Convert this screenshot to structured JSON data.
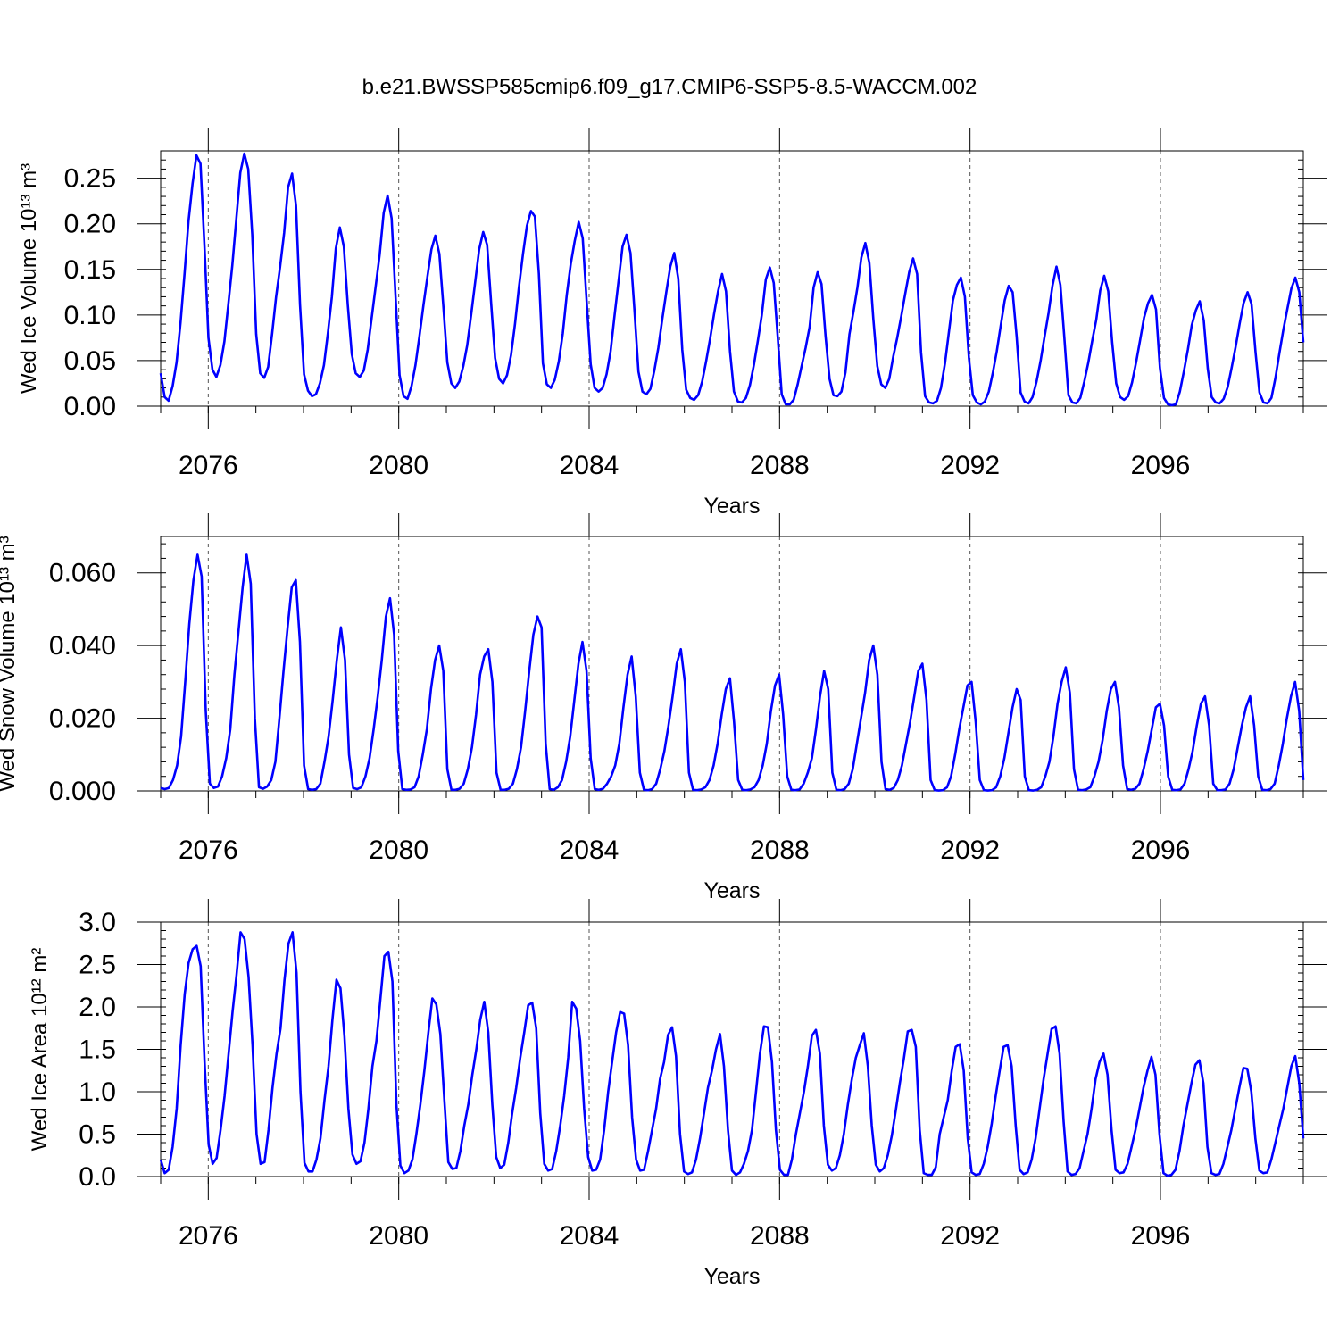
{
  "title": "b.e21.BWSSP585cmip6.f09_g17.CMIP6-SSP5-8.5-WACCM.002",
  "colors": {
    "series": "#0000ff",
    "axis": "#000000",
    "grid": "#555555"
  },
  "chart_data": [
    {
      "type": "line",
      "ylabel": "Wed Ice Volume 10¹³ m³",
      "xlabel": "Years",
      "xlim": [
        2075,
        2099
      ],
      "ylim": [
        0.0,
        0.28
      ],
      "yticks": [
        "0.00",
        "0.05",
        "0.10",
        "0.15",
        "0.20",
        "0.25"
      ],
      "xticks": [
        "2076",
        "2080",
        "2084",
        "2088",
        "2092",
        "2096"
      ],
      "grid": "vertical dashed at 2076, 2080, 2084, 2088, 2092, 2096",
      "series": [
        {
          "values": [
            0.036,
            0.01,
            0.006,
            0.022,
            0.048,
            0.092,
            0.146,
            0.203,
            0.244,
            0.275,
            0.266,
            0.175,
            0.075,
            0.04,
            0.032,
            0.045,
            0.071,
            0.112,
            0.155,
            0.205,
            0.256,
            0.277,
            0.26,
            0.188,
            0.079,
            0.036,
            0.031,
            0.043,
            0.08,
            0.12,
            0.153,
            0.19,
            0.24,
            0.255,
            0.22,
            0.111,
            0.035,
            0.017,
            0.011,
            0.013,
            0.025,
            0.045,
            0.08,
            0.12,
            0.173,
            0.196,
            0.175,
            0.111,
            0.057,
            0.036,
            0.032,
            0.039,
            0.062,
            0.097,
            0.131,
            0.166,
            0.212,
            0.231,
            0.206,
            0.121,
            0.034,
            0.011,
            0.008,
            0.022,
            0.045,
            0.077,
            0.111,
            0.142,
            0.172,
            0.187,
            0.167,
            0.109,
            0.048,
            0.025,
            0.02,
            0.027,
            0.044,
            0.067,
            0.101,
            0.136,
            0.172,
            0.191,
            0.177,
            0.113,
            0.053,
            0.03,
            0.025,
            0.034,
            0.056,
            0.09,
            0.131,
            0.167,
            0.198,
            0.214,
            0.208,
            0.145,
            0.047,
            0.024,
            0.02,
            0.029,
            0.049,
            0.08,
            0.122,
            0.156,
            0.181,
            0.202,
            0.184,
            0.115,
            0.046,
            0.02,
            0.016,
            0.02,
            0.035,
            0.06,
            0.099,
            0.137,
            0.175,
            0.188,
            0.168,
            0.106,
            0.038,
            0.016,
            0.013,
            0.019,
            0.039,
            0.064,
            0.096,
            0.125,
            0.153,
            0.168,
            0.14,
            0.062,
            0.018,
            0.009,
            0.007,
            0.012,
            0.027,
            0.049,
            0.074,
            0.101,
            0.126,
            0.145,
            0.126,
            0.06,
            0.016,
            0.005,
            0.004,
            0.009,
            0.023,
            0.045,
            0.072,
            0.1,
            0.139,
            0.152,
            0.135,
            0.075,
            0.013,
            0.002,
            0.002,
            0.007,
            0.024,
            0.044,
            0.064,
            0.087,
            0.13,
            0.147,
            0.134,
            0.077,
            0.03,
            0.012,
            0.011,
            0.016,
            0.037,
            0.079,
            0.103,
            0.13,
            0.163,
            0.179,
            0.157,
            0.096,
            0.044,
            0.024,
            0.02,
            0.03,
            0.054,
            0.075,
            0.098,
            0.123,
            0.147,
            0.162,
            0.145,
            0.059,
            0.011,
            0.004,
            0.003,
            0.006,
            0.02,
            0.047,
            0.082,
            0.116,
            0.133,
            0.141,
            0.12,
            0.053,
            0.012,
            0.004,
            0.002,
            0.005,
            0.016,
            0.036,
            0.06,
            0.088,
            0.116,
            0.132,
            0.125,
            0.076,
            0.015,
            0.005,
            0.003,
            0.01,
            0.027,
            0.049,
            0.076,
            0.102,
            0.132,
            0.153,
            0.133,
            0.074,
            0.012,
            0.004,
            0.003,
            0.009,
            0.027,
            0.048,
            0.072,
            0.095,
            0.127,
            0.143,
            0.126,
            0.07,
            0.025,
            0.01,
            0.007,
            0.011,
            0.026,
            0.048,
            0.072,
            0.097,
            0.113,
            0.122,
            0.106,
            0.042,
            0.009,
            0.002,
            0.001,
            0.002,
            0.016,
            0.038,
            0.062,
            0.089,
            0.105,
            0.115,
            0.094,
            0.041,
            0.01,
            0.004,
            0.003,
            0.008,
            0.021,
            0.042,
            0.065,
            0.09,
            0.113,
            0.125,
            0.112,
            0.059,
            0.015,
            0.004,
            0.003,
            0.009,
            0.031,
            0.058,
            0.084,
            0.107,
            0.129,
            0.141,
            0.125,
            0.07
          ]
        }
      ]
    },
    {
      "type": "line",
      "ylabel": "Wed Snow Volume 10¹³ m³",
      "xlabel": "Years",
      "xlim": [
        2075,
        2099
      ],
      "ylim": [
        0.0,
        0.07
      ],
      "yticks": [
        "0.000",
        "0.020",
        "0.040",
        "0.060"
      ],
      "xticks": [
        "2076",
        "2080",
        "2084",
        "2088",
        "2092",
        "2096"
      ],
      "grid": "vertical dashed at 2076, 2080, 2084, 2088, 2092, 2096",
      "series": [
        {
          "values": [
            0.0008,
            0.0005,
            0.0008,
            0.003,
            0.007,
            0.015,
            0.03,
            0.046,
            0.058,
            0.065,
            0.059,
            0.022,
            0.002,
            0.0008,
            0.0012,
            0.004,
            0.009,
            0.017,
            0.032,
            0.044,
            0.056,
            0.065,
            0.057,
            0.02,
            0.001,
            0.0006,
            0.0012,
            0.003,
            0.008,
            0.02,
            0.033,
            0.045,
            0.056,
            0.058,
            0.041,
            0.007,
            0.0005,
            0.0003,
            0.0005,
            0.002,
            0.008,
            0.015,
            0.025,
            0.036,
            0.045,
            0.036,
            0.01,
            0.0008,
            0.0005,
            0.001,
            0.004,
            0.009,
            0.017,
            0.026,
            0.036,
            0.048,
            0.053,
            0.043,
            0.011,
            0.0005,
            0.0003,
            0.0004,
            0.001,
            0.004,
            0.01,
            0.017,
            0.028,
            0.036,
            0.04,
            0.033,
            0.006,
            0.0003,
            0.0003,
            0.0006,
            0.002,
            0.006,
            0.012,
            0.021,
            0.032,
            0.037,
            0.039,
            0.03,
            0.005,
            0.0003,
            0.0003,
            0.0006,
            0.002,
            0.006,
            0.012,
            0.022,
            0.033,
            0.043,
            0.048,
            0.045,
            0.013,
            0.0005,
            0.0003,
            0.001,
            0.003,
            0.008,
            0.015,
            0.025,
            0.035,
            0.041,
            0.033,
            0.009,
            0.0005,
            0.0003,
            0.0006,
            0.002,
            0.004,
            0.007,
            0.013,
            0.023,
            0.032,
            0.037,
            0.026,
            0.005,
            0.0003,
            0.0002,
            0.0005,
            0.002,
            0.006,
            0.011,
            0.018,
            0.026,
            0.035,
            0.039,
            0.03,
            0.005,
            0.0003,
            0.0002,
            0.0004,
            0.001,
            0.003,
            0.007,
            0.013,
            0.021,
            0.028,
            0.031,
            0.019,
            0.003,
            0.0003,
            0.0002,
            0.0004,
            0.001,
            0.003,
            0.007,
            0.013,
            0.022,
            0.029,
            0.032,
            0.021,
            0.004,
            0.0003,
            0.0002,
            0.0004,
            0.002,
            0.005,
            0.009,
            0.017,
            0.026,
            0.033,
            0.028,
            0.005,
            0.0003,
            0.0002,
            0.0005,
            0.002,
            0.006,
            0.013,
            0.02,
            0.027,
            0.036,
            0.04,
            0.032,
            0.008,
            0.0005,
            0.0003,
            0.0008,
            0.003,
            0.007,
            0.013,
            0.019,
            0.026,
            0.033,
            0.035,
            0.025,
            0.003,
            0.0002,
            0.0001,
            0.0002,
            0.001,
            0.004,
            0.01,
            0.017,
            0.023,
            0.029,
            0.03,
            0.019,
            0.003,
            0.0002,
            0.0001,
            0.0002,
            0.001,
            0.004,
            0.009,
            0.016,
            0.023,
            0.028,
            0.025,
            0.004,
            0.0002,
            0.0001,
            0.0003,
            0.001,
            0.004,
            0.008,
            0.015,
            0.024,
            0.03,
            0.034,
            0.027,
            0.006,
            0.0003,
            0.0002,
            0.0004,
            0.001,
            0.004,
            0.008,
            0.014,
            0.022,
            0.028,
            0.03,
            0.023,
            0.007,
            0.0005,
            0.0003,
            0.0006,
            0.002,
            0.006,
            0.011,
            0.017,
            0.023,
            0.024,
            0.018,
            0.004,
            0.0003,
            0.0002,
            0.0004,
            0.002,
            0.006,
            0.011,
            0.018,
            0.024,
            0.026,
            0.018,
            0.002,
            0.0002,
            0.0002,
            0.0004,
            0.002,
            0.006,
            0.012,
            0.018,
            0.023,
            0.026,
            0.018,
            0.004,
            0.0003,
            0.0002,
            0.0005,
            0.002,
            0.007,
            0.013,
            0.02,
            0.026,
            0.03,
            0.022,
            0.003
          ]
        }
      ]
    },
    {
      "type": "line",
      "ylabel": "Wed Ice Area 10¹² m²",
      "xlabel": "Years",
      "xlim": [
        2075,
        2099
      ],
      "ylim": [
        0.0,
        3.0
      ],
      "yticks": [
        "0.0",
        "0.5",
        "1.0",
        "1.5",
        "2.0",
        "2.5",
        "3.0"
      ],
      "xticks": [
        "2076",
        "2080",
        "2084",
        "2088",
        "2092",
        "2096"
      ],
      "grid": "vertical dashed at 2076, 2080, 2084, 2088, 2092, 2096",
      "series": [
        {
          "values": [
            0.2,
            0.04,
            0.08,
            0.35,
            0.8,
            1.55,
            2.15,
            2.52,
            2.68,
            2.72,
            2.48,
            1.35,
            0.38,
            0.15,
            0.22,
            0.55,
            0.95,
            1.45,
            1.95,
            2.38,
            2.88,
            2.8,
            2.35,
            1.55,
            0.5,
            0.15,
            0.17,
            0.55,
            1.05,
            1.45,
            1.75,
            2.32,
            2.75,
            2.88,
            2.4,
            1.0,
            0.16,
            0.06,
            0.06,
            0.2,
            0.45,
            0.9,
            1.3,
            1.85,
            2.32,
            2.22,
            1.65,
            0.8,
            0.26,
            0.15,
            0.18,
            0.4,
            0.8,
            1.3,
            1.6,
            2.1,
            2.6,
            2.65,
            2.3,
            0.85,
            0.13,
            0.04,
            0.07,
            0.2,
            0.5,
            0.85,
            1.25,
            1.7,
            2.1,
            2.03,
            1.68,
            0.9,
            0.17,
            0.09,
            0.1,
            0.3,
            0.6,
            0.85,
            1.2,
            1.5,
            1.85,
            2.06,
            1.7,
            0.85,
            0.23,
            0.1,
            0.14,
            0.4,
            0.75,
            1.05,
            1.4,
            1.7,
            2.02,
            2.05,
            1.75,
            0.75,
            0.15,
            0.07,
            0.09,
            0.3,
            0.6,
            0.95,
            1.4,
            2.06,
            1.98,
            1.6,
            0.8,
            0.23,
            0.07,
            0.08,
            0.2,
            0.55,
            1.0,
            1.35,
            1.7,
            1.94,
            1.92,
            1.55,
            0.7,
            0.2,
            0.07,
            0.08,
            0.3,
            0.55,
            0.8,
            1.15,
            1.35,
            1.67,
            1.76,
            1.42,
            0.5,
            0.06,
            0.03,
            0.05,
            0.2,
            0.45,
            0.75,
            1.05,
            1.25,
            1.5,
            1.68,
            1.3,
            0.55,
            0.07,
            0.02,
            0.05,
            0.15,
            0.3,
            0.55,
            1.0,
            1.45,
            1.77,
            1.76,
            1.35,
            0.55,
            0.08,
            0.02,
            0.02,
            0.2,
            0.5,
            0.75,
            1.0,
            1.3,
            1.66,
            1.73,
            1.45,
            0.6,
            0.14,
            0.07,
            0.1,
            0.25,
            0.5,
            0.85,
            1.15,
            1.4,
            1.55,
            1.69,
            1.3,
            0.6,
            0.14,
            0.06,
            0.1,
            0.25,
            0.48,
            0.78,
            1.1,
            1.38,
            1.71,
            1.73,
            1.53,
            0.55,
            0.04,
            0.02,
            0.02,
            0.11,
            0.5,
            0.7,
            0.9,
            1.25,
            1.53,
            1.56,
            1.25,
            0.45,
            0.05,
            0.02,
            0.03,
            0.15,
            0.35,
            0.62,
            0.95,
            1.25,
            1.53,
            1.55,
            1.3,
            0.6,
            0.08,
            0.03,
            0.05,
            0.2,
            0.45,
            0.8,
            1.15,
            1.45,
            1.74,
            1.77,
            1.45,
            0.65,
            0.06,
            0.02,
            0.03,
            0.1,
            0.3,
            0.5,
            0.8,
            1.15,
            1.35,
            1.45,
            1.2,
            0.55,
            0.08,
            0.04,
            0.05,
            0.15,
            0.35,
            0.55,
            0.8,
            1.05,
            1.25,
            1.41,
            1.2,
            0.5,
            0.04,
            0.01,
            0.02,
            0.08,
            0.3,
            0.6,
            0.85,
            1.1,
            1.32,
            1.37,
            1.1,
            0.35,
            0.04,
            0.02,
            0.03,
            0.15,
            0.35,
            0.55,
            0.8,
            1.05,
            1.28,
            1.27,
            1.0,
            0.45,
            0.07,
            0.04,
            0.05,
            0.2,
            0.4,
            0.6,
            0.8,
            1.05,
            1.3,
            1.42,
            1.1,
            0.45
          ]
        }
      ]
    }
  ]
}
